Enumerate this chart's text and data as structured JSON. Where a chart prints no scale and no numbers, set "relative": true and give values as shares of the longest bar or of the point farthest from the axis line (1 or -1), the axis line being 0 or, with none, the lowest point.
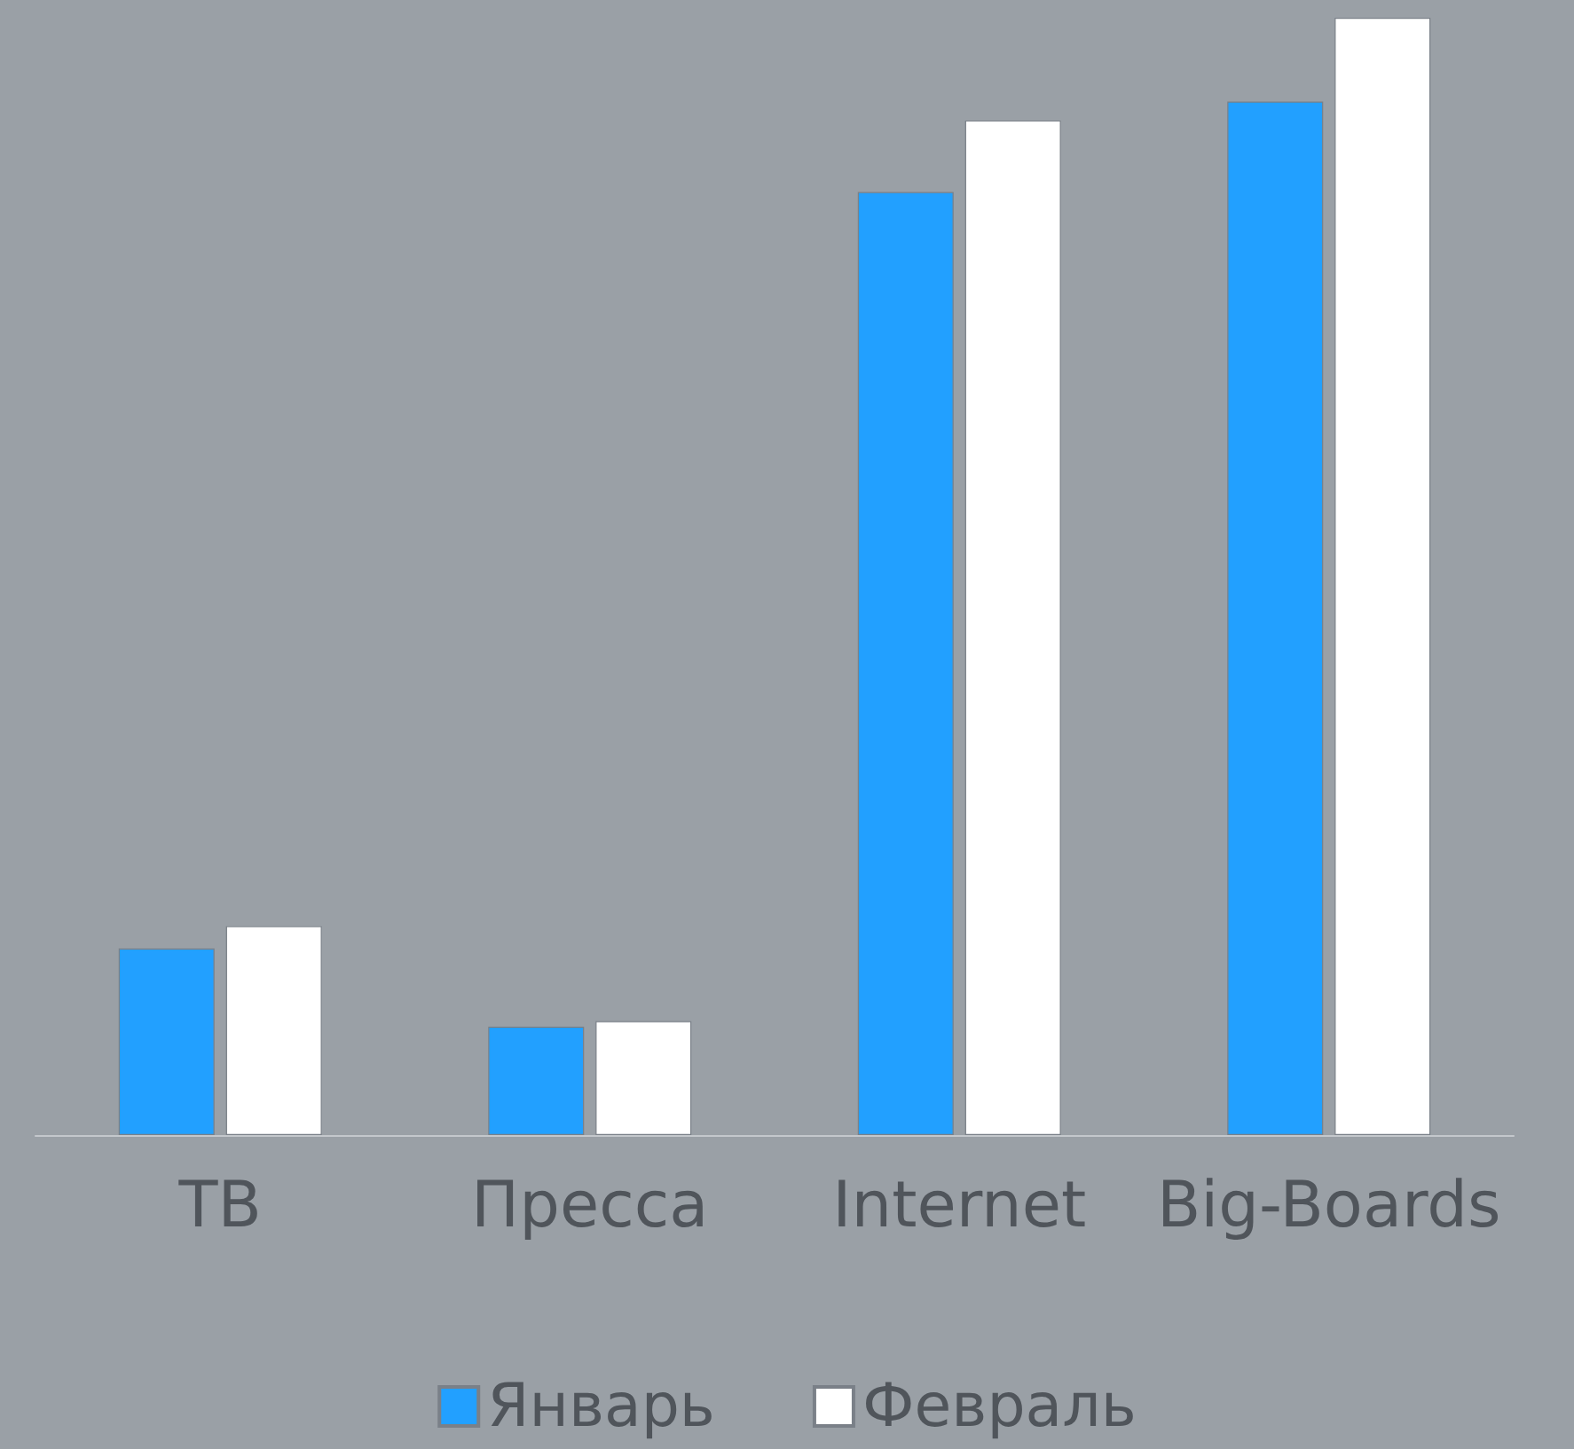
{
  "chart_data": {
    "type": "bar",
    "relative": true,
    "categories": [
      "ТВ",
      "Пресса",
      "Internet",
      "Big-Boards"
    ],
    "series": [
      {
        "name": "Январь",
        "color": "#22a0ff",
        "values": [
          0.167,
          0.097,
          0.844,
          0.925
        ]
      },
      {
        "name": "Февраль",
        "color": "#ffffff",
        "values": [
          0.187,
          0.102,
          0.908,
          1
        ]
      }
    ],
    "legend": "bottom"
  }
}
